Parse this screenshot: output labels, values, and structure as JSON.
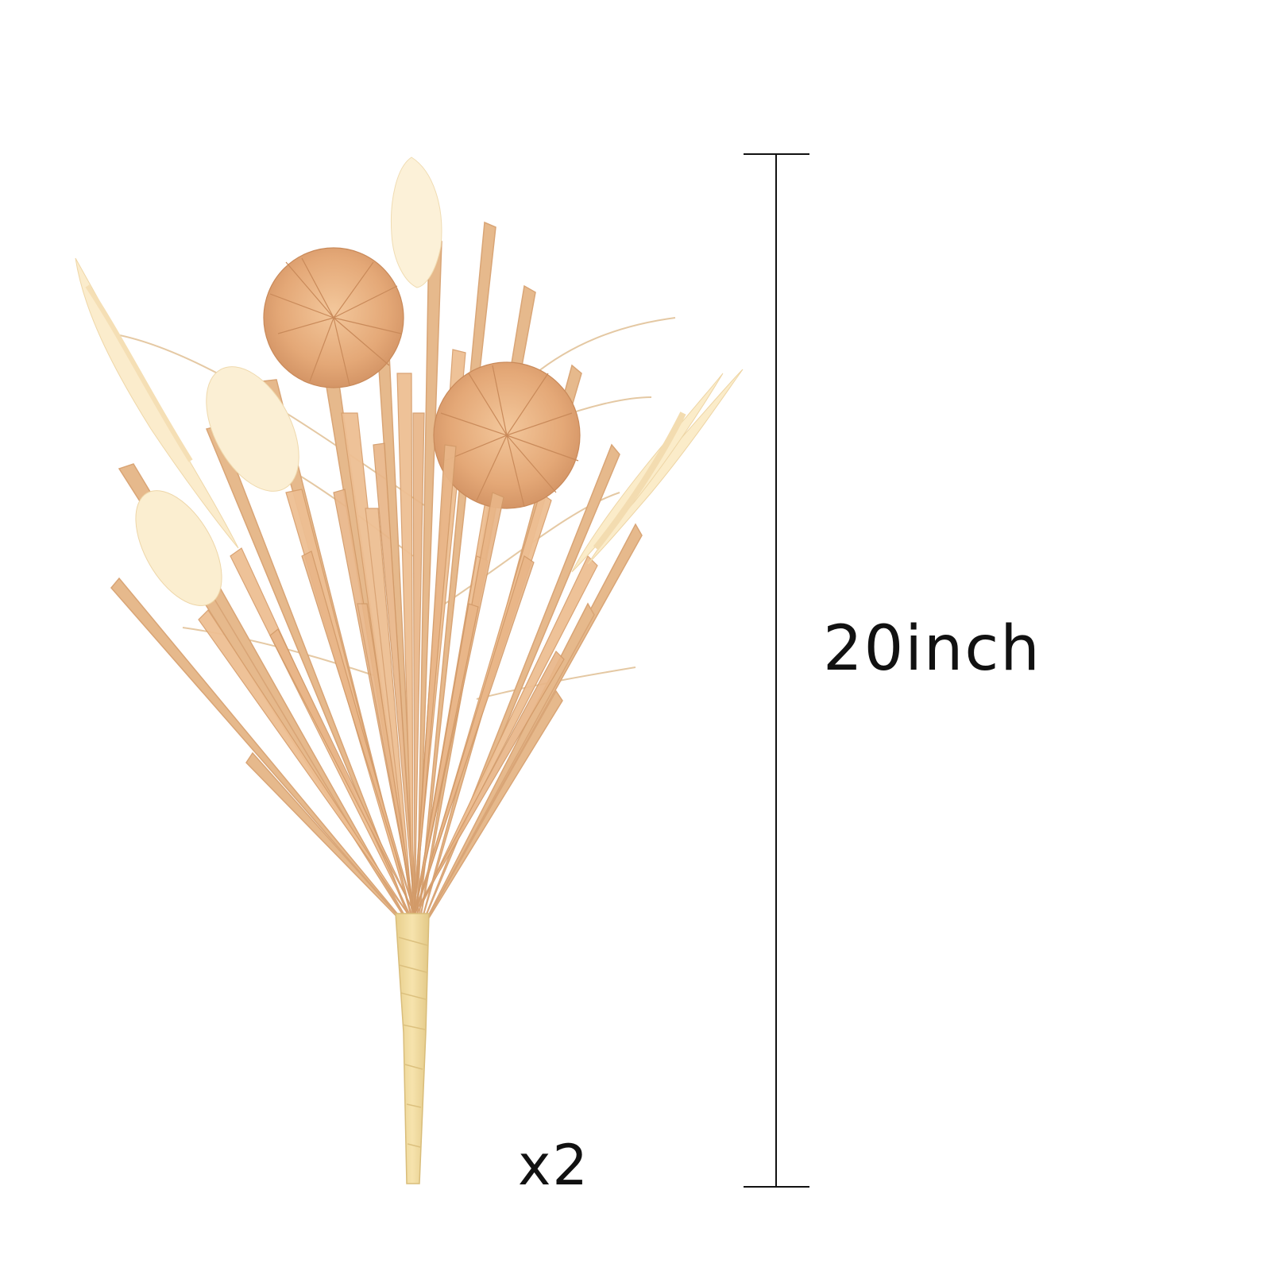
{
  "product": {
    "subject": "dried-grass-bouquet",
    "colors": {
      "straw": "#e7b98a",
      "straw_dark": "#d49b68",
      "pompom": "#eab07e",
      "plume": "#fbeed2",
      "stem_wrap": "#f1dca0",
      "dimension_line": "#111111",
      "background": "#ffffff"
    }
  },
  "dimension": {
    "label": "20inch"
  },
  "quantity": {
    "label": "x2"
  }
}
